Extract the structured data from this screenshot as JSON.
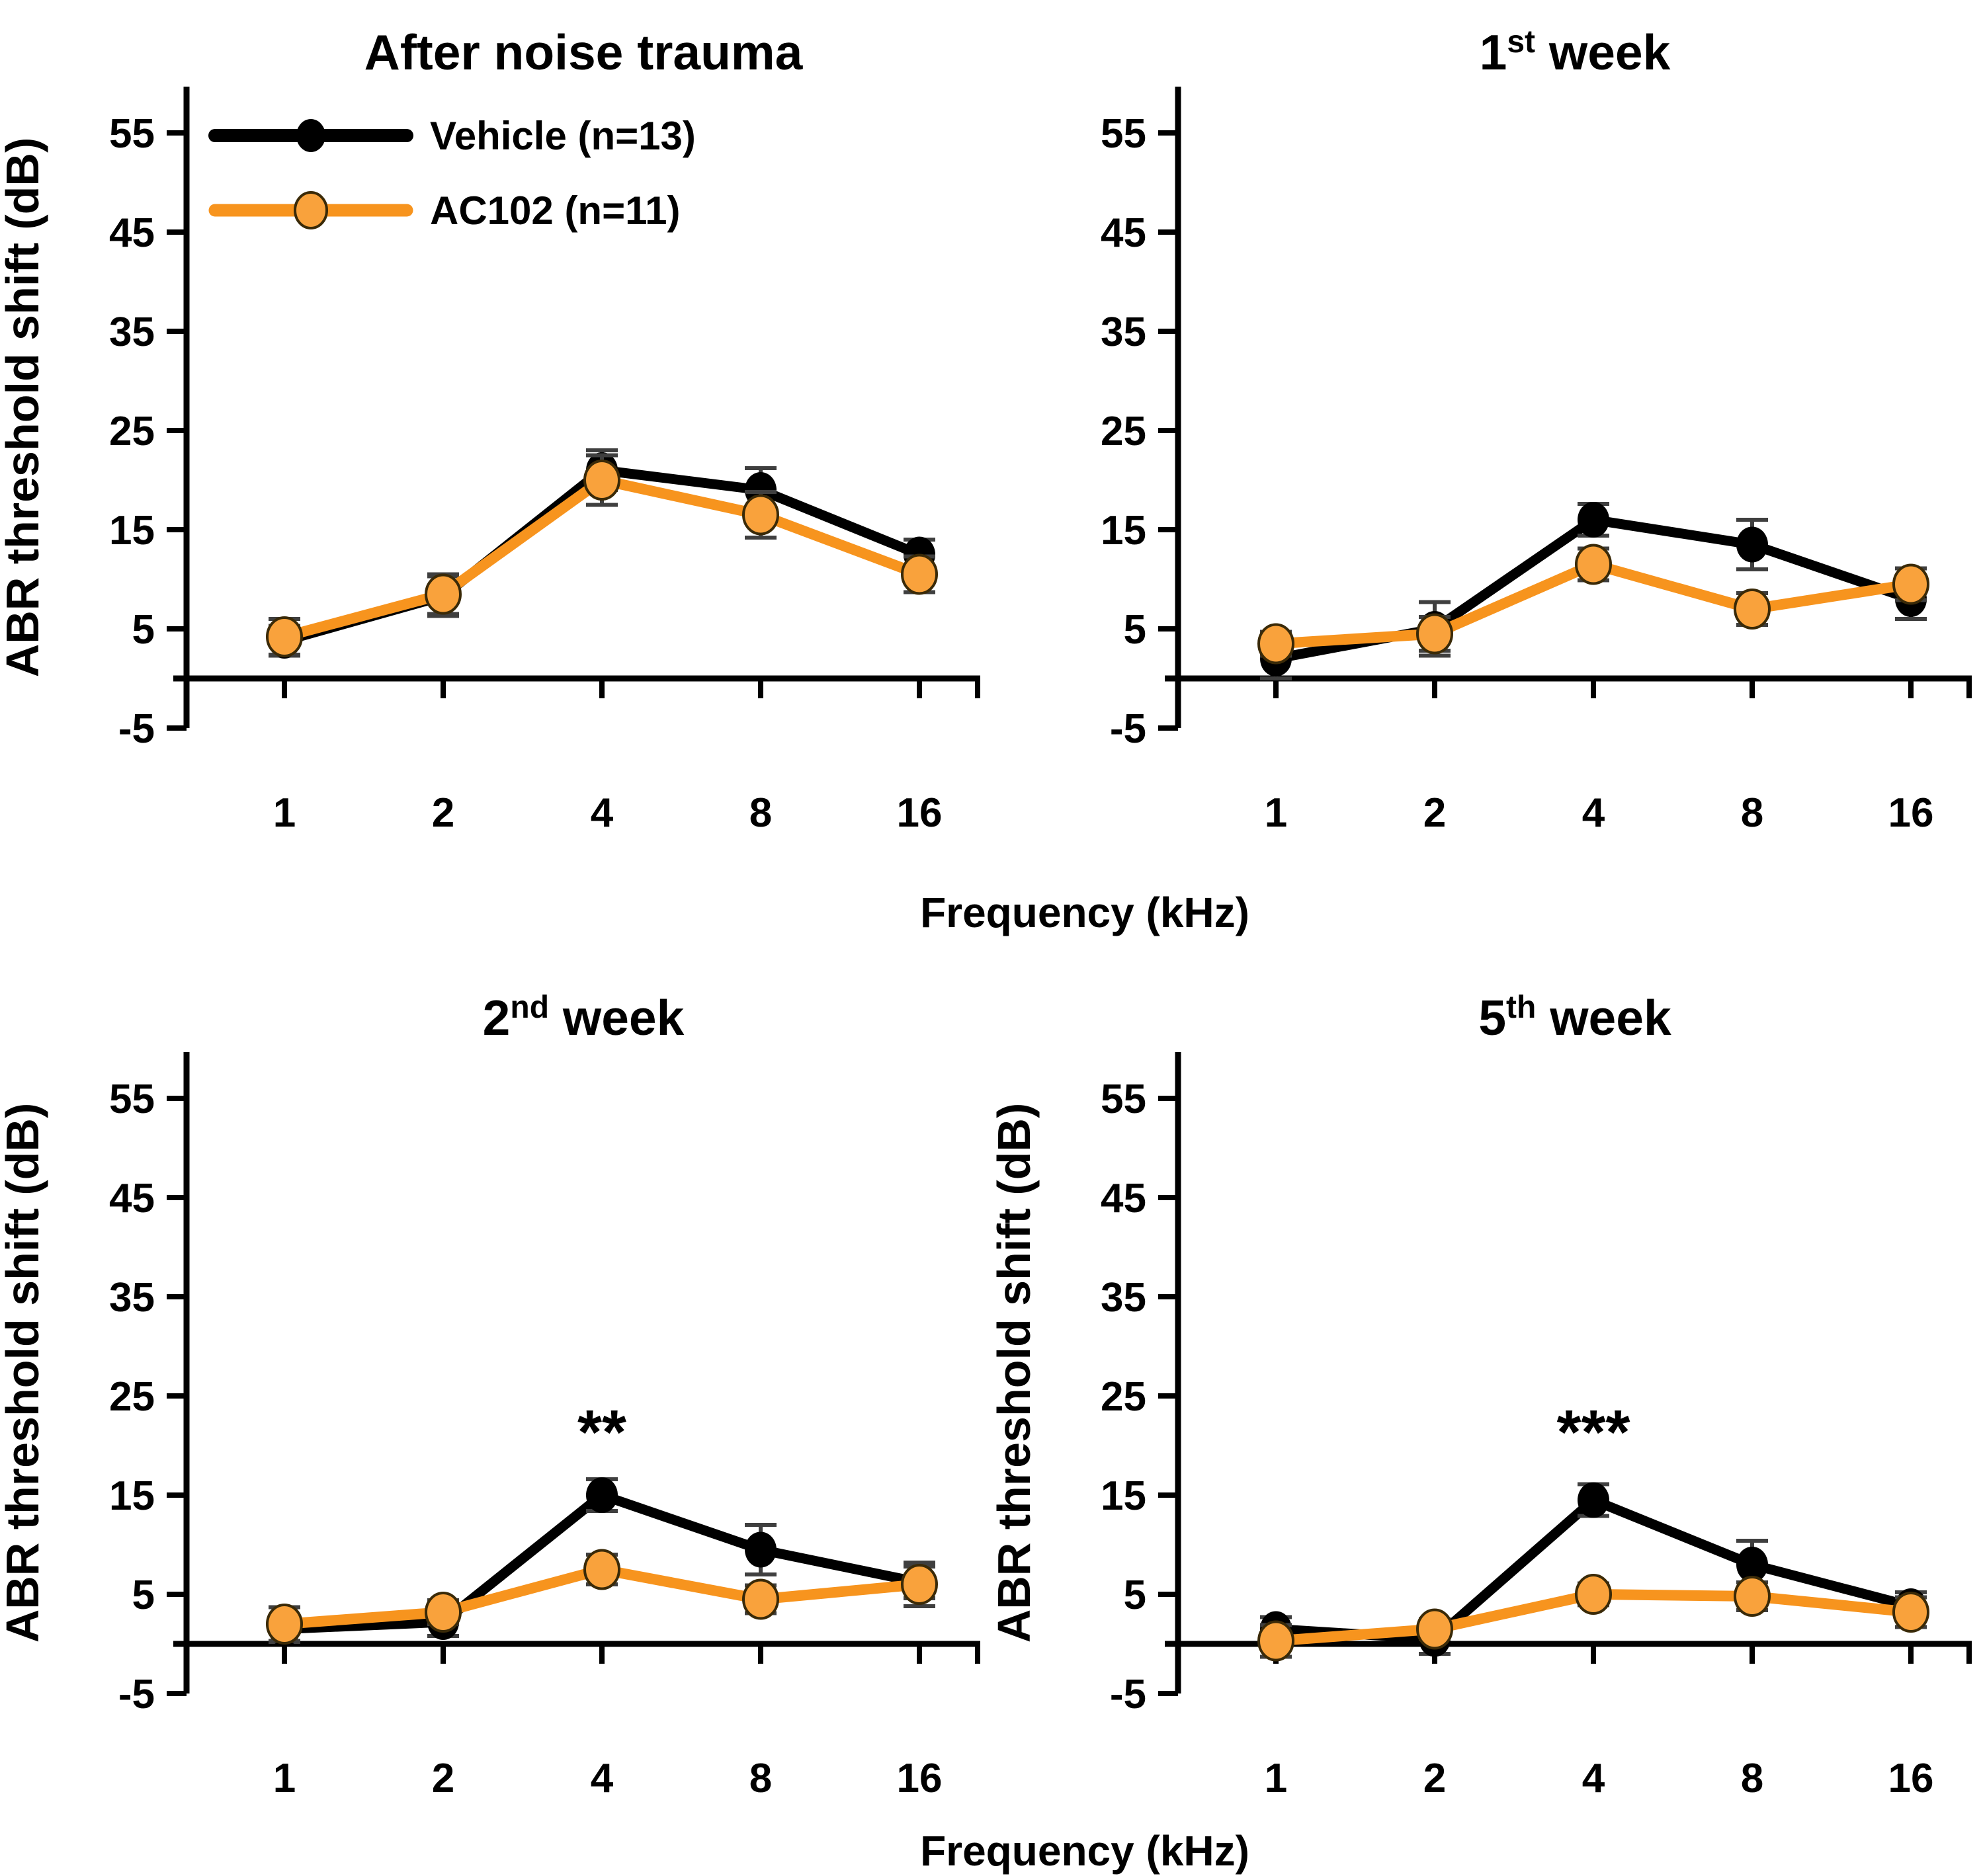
{
  "figure": {
    "ylabel": "ABR threshold shift (dB)",
    "xlabel": "Frequency (kHz)",
    "colors": {
      "vehicle": "#000000",
      "ac102_line": "#F7941E",
      "ac102_fill": "#F9A23C",
      "ac102_edge": "#3A2A08",
      "error_bar": "#3F3F3F",
      "axis": "#000000"
    }
  },
  "legend": {
    "items": [
      {
        "label": "Vehicle (n=13)",
        "series": "vehicle"
      },
      {
        "label": "AC102 (n=11)",
        "series": "ac102"
      }
    ]
  },
  "chart_data": [
    {
      "id": "after-noise-trauma",
      "type": "line",
      "title_prefix": "After noise trauma",
      "title_sup": "",
      "title_suffix": "",
      "x_categories": [
        "1",
        "2",
        "4",
        "8",
        "16"
      ],
      "y_ticks": [
        55,
        45,
        35,
        25,
        15,
        5,
        -5
      ],
      "ylim": [
        -5,
        60
      ],
      "grid": false,
      "legend_position": "top-left-inside",
      "show_legend": true,
      "show_ylabel": true,
      "annotation": null,
      "series": [
        {
          "name": "Vehicle (n=13)",
          "key": "vehicle",
          "marker": "filled-circle",
          "values": [
            3.8,
            8.3,
            21,
            19,
            12.5
          ],
          "errors": [
            1.5,
            2,
            2,
            2.2,
            1.5
          ]
        },
        {
          "name": "AC102 (n=11)",
          "key": "ac102",
          "marker": "open-circle",
          "values": [
            4.2,
            8.5,
            20,
            16.5,
            10.5
          ],
          "errors": [
            1.8,
            2,
            2.5,
            2.3,
            1.8
          ]
        }
      ]
    },
    {
      "id": "first-week",
      "type": "line",
      "title_prefix": "1",
      "title_sup": "st",
      "title_suffix": " week",
      "x_categories": [
        "1",
        "2",
        "4",
        "8",
        "16"
      ],
      "y_ticks": [
        55,
        45,
        35,
        25,
        15,
        5,
        -5
      ],
      "ylim": [
        -5,
        60
      ],
      "grid": false,
      "show_legend": false,
      "show_ylabel": false,
      "annotation": null,
      "series": [
        {
          "name": "Vehicle (n=13)",
          "key": "vehicle",
          "marker": "filled-circle",
          "values": [
            2,
            5,
            16,
            13.5,
            8
          ],
          "errors": [
            2,
            2.7,
            1.6,
            2.5,
            2
          ]
        },
        {
          "name": "AC102 (n=11)",
          "key": "ac102",
          "marker": "open-circle",
          "values": [
            3.5,
            4.5,
            11.5,
            7,
            9.5
          ],
          "errors": [
            1.2,
            1.7,
            1.6,
            1.6,
            1.6
          ]
        }
      ]
    },
    {
      "id": "second-week",
      "type": "line",
      "title_prefix": "2",
      "title_sup": "nd",
      "title_suffix": " week",
      "x_categories": [
        "1",
        "2",
        "4",
        "8",
        "16"
      ],
      "y_ticks": [
        55,
        45,
        35,
        25,
        15,
        5,
        -5
      ],
      "ylim": [
        -5,
        60
      ],
      "grid": false,
      "show_legend": false,
      "show_ylabel": true,
      "annotation": {
        "text": "**",
        "x_index": 2,
        "y_db": 19.2
      },
      "series": [
        {
          "name": "Vehicle (n=13)",
          "key": "vehicle",
          "marker": "filled-circle",
          "values": [
            1.5,
            2.2,
            15,
            9.5,
            6.2
          ],
          "errors": [
            1.3,
            1.4,
            1.6,
            2.5,
            1.6
          ]
        },
        {
          "name": "AC102 (n=11)",
          "key": "ac102",
          "marker": "open-circle",
          "values": [
            2,
            3.2,
            7.5,
            4.5,
            6
          ],
          "errors": [
            1.7,
            1.2,
            1.5,
            1.4,
            2.2
          ]
        }
      ]
    },
    {
      "id": "fifth-week",
      "type": "line",
      "title_prefix": "5",
      "title_sup": "th",
      "title_suffix": " week",
      "x_categories": [
        "1",
        "2",
        "4",
        "8",
        "16"
      ],
      "y_ticks": [
        55,
        45,
        35,
        25,
        15,
        5,
        -5
      ],
      "ylim": [
        -5,
        60
      ],
      "grid": false,
      "show_legend": false,
      "show_ylabel": true,
      "annotation": {
        "text": "***",
        "x_index": 2,
        "y_db": 19.2
      },
      "series": [
        {
          "name": "Vehicle (n=13)",
          "key": "vehicle",
          "marker": "filled-circle",
          "values": [
            1.5,
            0.5,
            14.5,
            8,
            3.8
          ],
          "errors": [
            1.2,
            1.5,
            1.6,
            2.4,
            1.4
          ]
        },
        {
          "name": "AC102 (n=11)",
          "key": "ac102",
          "marker": "open-circle",
          "values": [
            0.3,
            1.5,
            5,
            4.8,
            3.2
          ],
          "errors": [
            1.6,
            1,
            1.1,
            1.4,
            1.5
          ]
        }
      ]
    }
  ]
}
